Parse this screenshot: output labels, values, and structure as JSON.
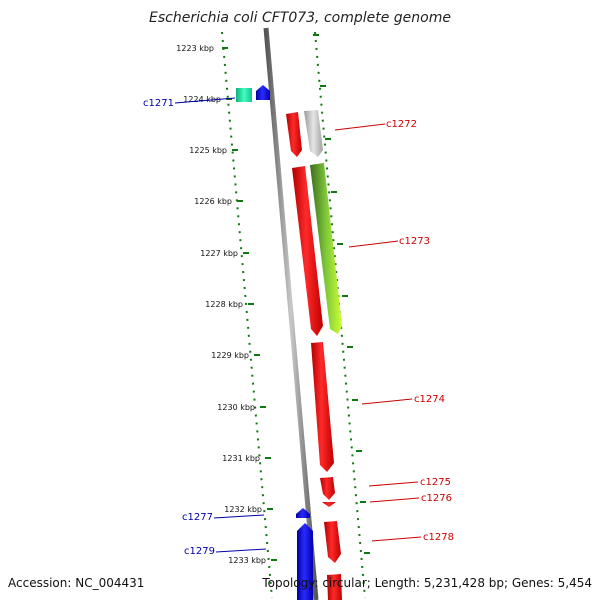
{
  "title": "Escherichia coli CFT073, complete genome",
  "footer": {
    "accession": "Accession: NC_004431",
    "topology_prefix": "Topology: circular; Length: ",
    "length": "5,231,428 bp",
    "genes_prefix": "; Genes: ",
    "genes": "5,454"
  },
  "colors": {
    "forward_gene": "#ff0000",
    "reverse_gene": "#0000ff",
    "forward_label": "#cc0000",
    "reverse_label": "#0000aa",
    "tick": "#117711",
    "axis": "#888888"
  },
  "ticks": [
    "1223 kbp",
    "1224 kbp",
    "1225 kbp",
    "1226 kbp",
    "1227 kbp",
    "1228 kbp",
    "1229 kbp",
    "1230 kbp",
    "1231 kbp",
    "1232 kbp",
    "1233 kbp"
  ],
  "gene_labels": {
    "forward": [
      "c1272",
      "c1273",
      "c1274",
      "c1275",
      "c1276",
      "c1278"
    ],
    "reverse": [
      "c1271",
      "c1277",
      "c1279"
    ]
  }
}
